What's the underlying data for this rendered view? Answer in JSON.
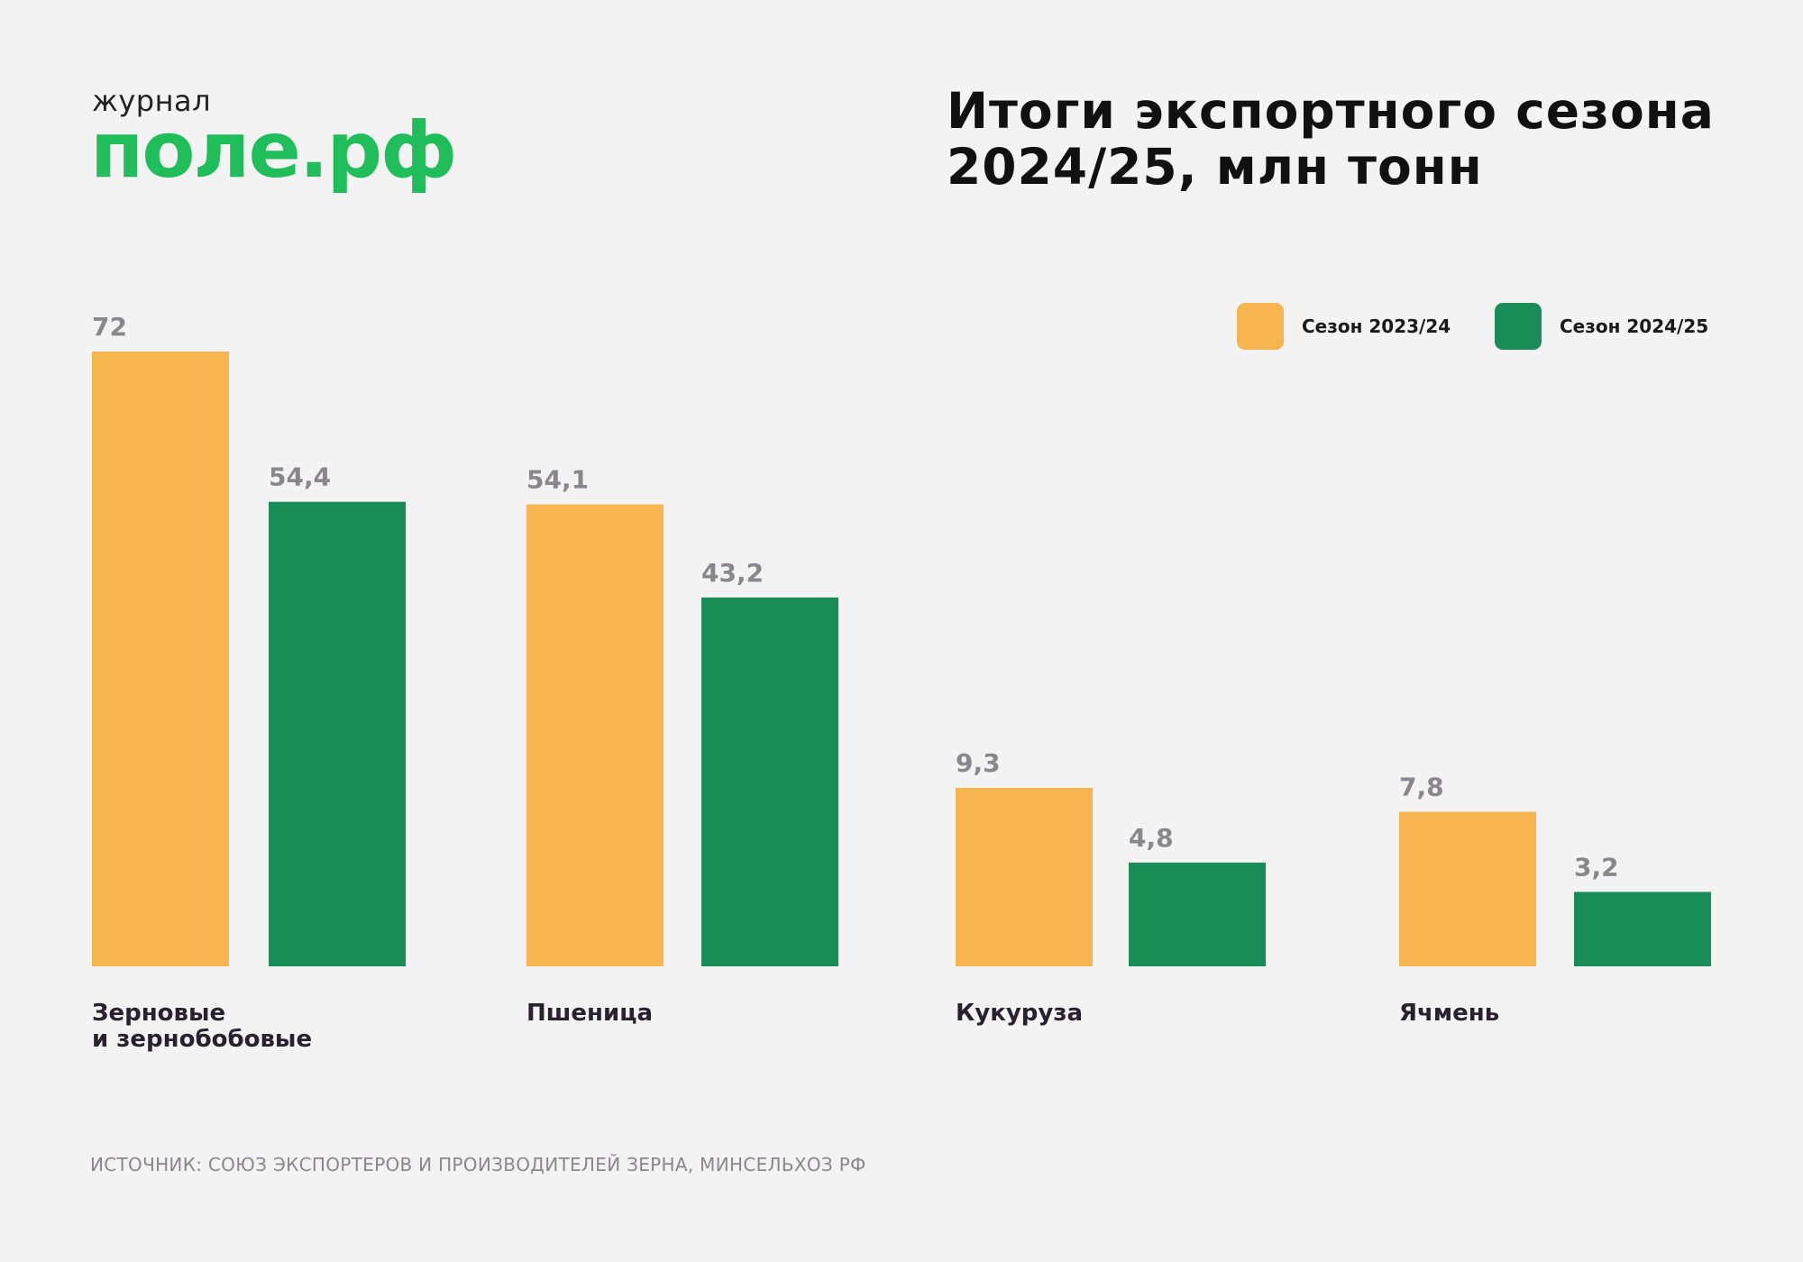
{
  "logo": {
    "small": "журнал",
    "big": "поле.рф"
  },
  "chart_data": {
    "type": "bar",
    "title_lines": [
      "Итоги экспортного сезона",
      "2024/25, млн тонн"
    ],
    "categories": [
      [
        "Зерновые",
        "и зернобобовые"
      ],
      [
        "Пшеница"
      ],
      [
        "Кукуруза"
      ],
      [
        "Ячмень"
      ]
    ],
    "series": [
      {
        "name": "Сезон 2023/24",
        "color": "#f6b54e",
        "values": [
          72,
          54.1,
          9.3,
          7.8
        ],
        "labels": [
          "72",
          "54,1",
          "9,3",
          "7,8"
        ]
      },
      {
        "name": "Сезон 2024/25",
        "color": "#1a8c57",
        "values": [
          54.4,
          43.2,
          4.8,
          3.2
        ],
        "labels": [
          "54,4",
          "43,2",
          "4,8",
          "3,2"
        ]
      }
    ],
    "value_label_color": "#8b868d",
    "legend_position": "top-right",
    "grid": false,
    "scale_note": "bar heights not strictly linear in original"
  },
  "source": "ИСТОЧНИК: СОЮЗ ЭКСПОРТЕРОВ И ПРОИЗВОДИТЕЛЕЙ ЗЕРНА, МИНСЕЛЬХОЗ РФ"
}
